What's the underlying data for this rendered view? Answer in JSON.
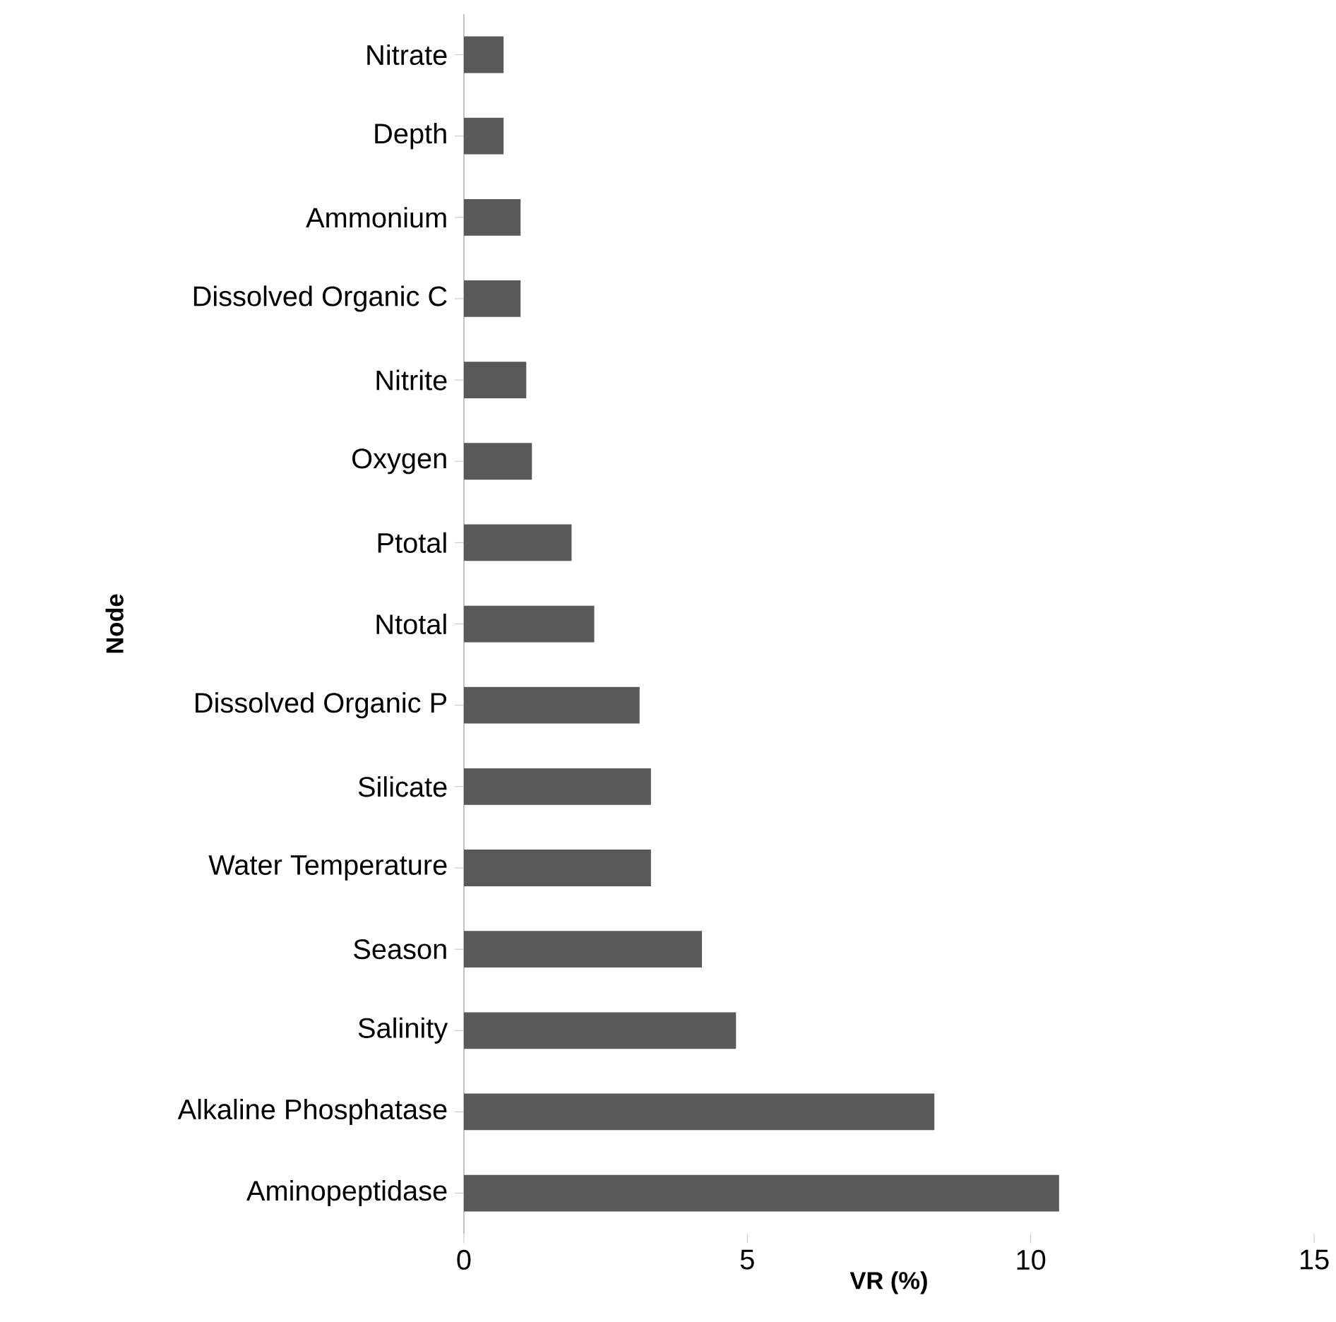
{
  "chart_data": {
    "type": "bar",
    "orientation": "horizontal",
    "xlabel": "VR (%)",
    "ylabel": "Node",
    "categories": [
      "Nitrate",
      "Depth",
      "Ammonium",
      "Dissolved Organic C",
      "Nitrite",
      "Oxygen",
      "Ptotal",
      "Ntotal",
      "Dissolved Organic P",
      "Silicate",
      "Water Temperature",
      "Season",
      "Salinity",
      "Alkaline Phosphatase",
      "Aminopeptidase"
    ],
    "values": [
      0.7,
      0.7,
      1.0,
      1.0,
      1.1,
      1.2,
      1.9,
      2.3,
      3.1,
      3.3,
      3.3,
      4.2,
      4.8,
      8.3,
      10.5
    ],
    "color": "#595959",
    "xlim": [
      0,
      15
    ],
    "xticks": [
      0,
      5,
      10,
      15
    ]
  }
}
